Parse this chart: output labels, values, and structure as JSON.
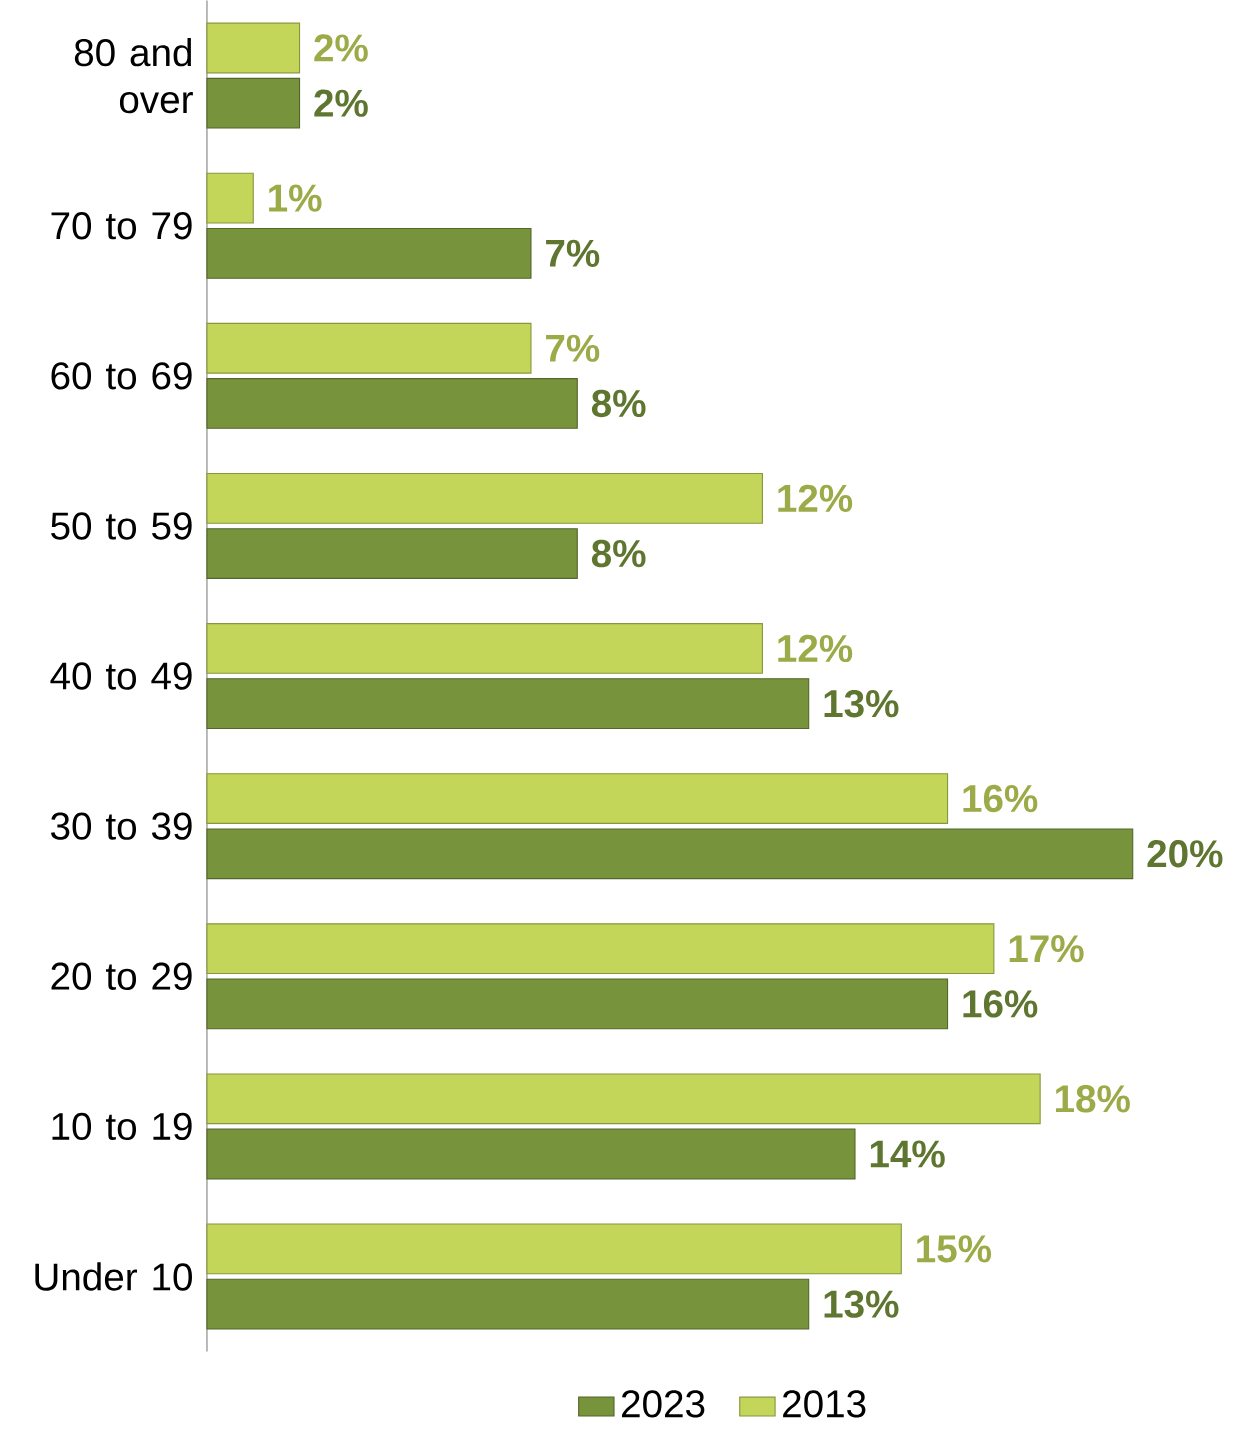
{
  "chart_data": {
    "type": "bar",
    "orientation": "horizontal",
    "categories": [
      "80 and over",
      "70 to 79",
      "60 to 69",
      "50 to 59",
      "40 to 49",
      "30 to 39",
      "20 to 29",
      "10 to 19",
      "Under 10"
    ],
    "series": [
      {
        "name": "2023",
        "color": "#77933c",
        "values": [
          2,
          7,
          8,
          8,
          13,
          20,
          16,
          14,
          13
        ],
        "value_labels": [
          "2%",
          "7%",
          "8%",
          "8%",
          "13%",
          "20%",
          "16%",
          "14%",
          "13%"
        ]
      },
      {
        "name": "2013",
        "color": "#c3d65a",
        "values": [
          2,
          1,
          7,
          12,
          12,
          16,
          17,
          18,
          15
        ],
        "value_labels": [
          "2%",
          "1%",
          "7%",
          "12%",
          "12%",
          "16%",
          "17%",
          "18%",
          "15%"
        ]
      }
    ],
    "tick_labels": "y",
    "legend": "bottom"
  }
}
